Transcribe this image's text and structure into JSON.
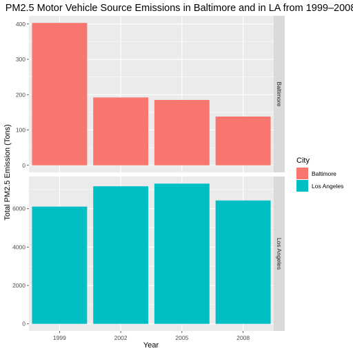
{
  "chart_data": {
    "type": "bar",
    "title": "PM2.5 Motor Vehicle Source Emissions in Baltimore and in LA from 1999–2008",
    "xlabel": "Year",
    "ylabel": "Total PM2.5 Emission (Tons)",
    "categories": [
      "1999",
      "2002",
      "2005",
      "2008"
    ],
    "facets": [
      {
        "name": "Baltimore",
        "color": "#F8766D",
        "values": [
          403,
          192,
          185,
          138
        ],
        "ylim": [
          -20,
          423
        ],
        "yticks": [
          0,
          100,
          200,
          300,
          400
        ]
      },
      {
        "name": "Los Angeles",
        "color": "#00BFC4",
        "values": [
          6110,
          7170,
          7310,
          6430
        ],
        "ylim": [
          -370,
          7680
        ],
        "yticks": [
          0,
          2000,
          4000,
          6000
        ]
      }
    ],
    "legend": {
      "title": "City",
      "position": "right",
      "entries": [
        {
          "label": "Baltimore",
          "color": "#F8766D"
        },
        {
          "label": "Los Angeles",
          "color": "#00BFC4"
        }
      ]
    },
    "grid": true,
    "panel_background": "#EBEBEB",
    "strip_background": "#D9D9D9"
  }
}
